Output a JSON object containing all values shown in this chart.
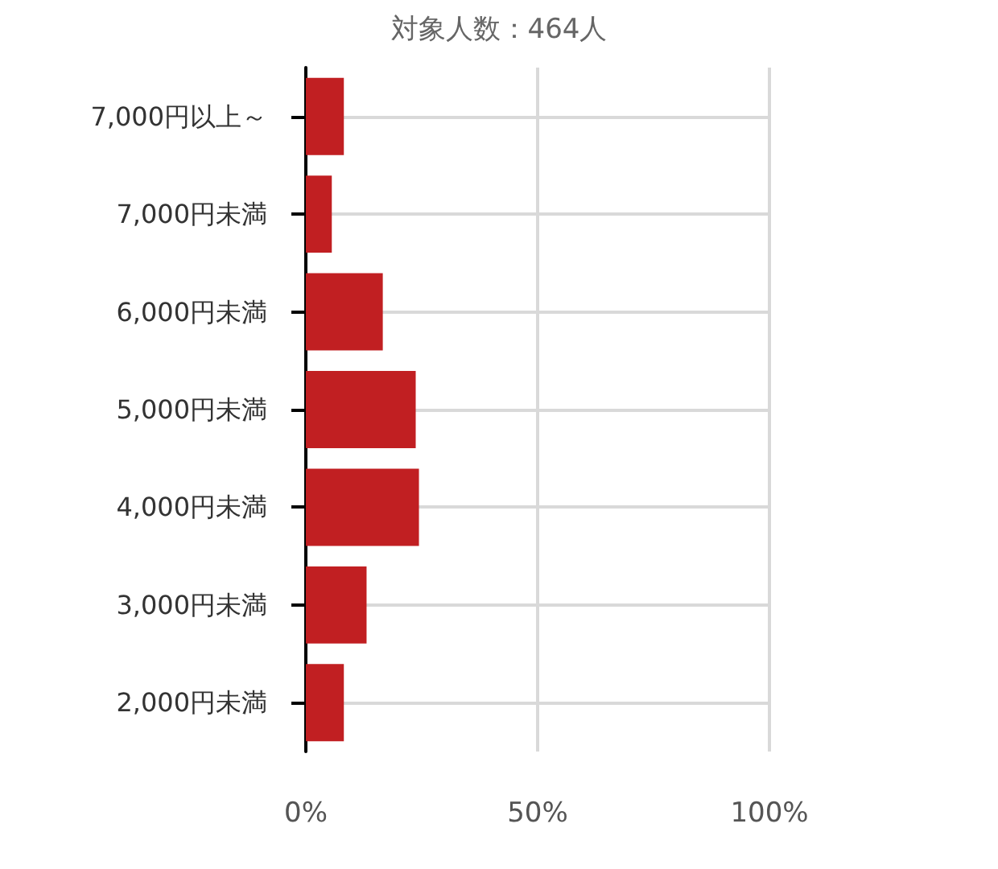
{
  "chart_data": {
    "type": "bar",
    "orientation": "horizontal",
    "title": "対象人数：464人",
    "categories": [
      "7,000円以上～",
      "7,000円未満",
      "6,000円未満",
      "5,000円未満",
      "4,000円未満",
      "3,000円未満",
      "2,000円未満"
    ],
    "values": [
      8.2,
      5.6,
      16.6,
      23.7,
      24.4,
      13.1,
      8.2
    ],
    "color": "#c11f22",
    "xlim": [
      0,
      100
    ],
    "xticks": [
      {
        "value": 0,
        "label": "0%"
      },
      {
        "value": 50,
        "label": "50%"
      },
      {
        "value": 100,
        "label": "100%"
      }
    ],
    "grid": true
  }
}
